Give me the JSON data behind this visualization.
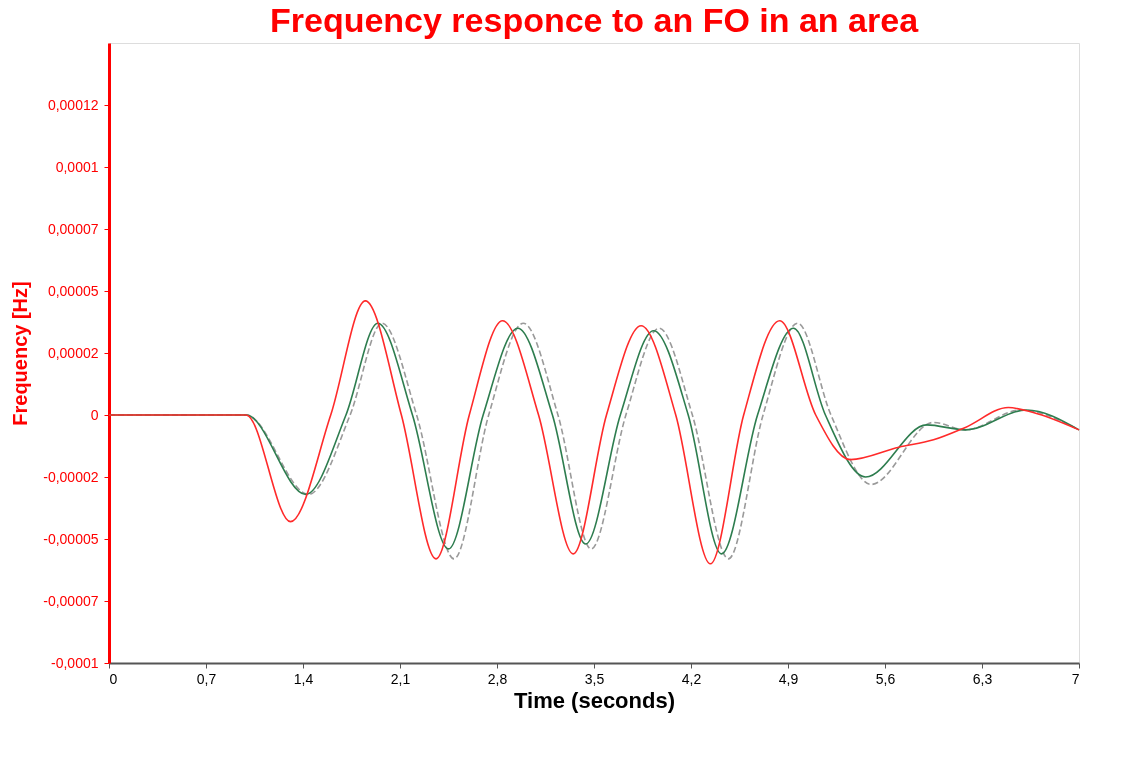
{
  "chart_data": {
    "type": "line",
    "title": "Frequency responce to an FO in an area",
    "xlabel": "Time (seconds)",
    "ylabel": "Frequency [Hz]",
    "xlim": [
      0,
      7
    ],
    "ylim": [
      -0.0001,
      0.00015
    ],
    "xticks": [
      0,
      {
        "value": 0.7,
        "label": "0,7"
      },
      {
        "value": 1.4,
        "label": "1,4"
      },
      {
        "value": 2.1,
        "label": "2,1"
      },
      {
        "value": 2.8,
        "label": "2,8"
      },
      {
        "value": 3.5,
        "label": "3,5"
      },
      {
        "value": 4.2,
        "label": "4,2"
      },
      {
        "value": 4.9,
        "label": "4,9"
      },
      {
        "value": 5.6,
        "label": "5,6"
      },
      {
        "value": 6.3,
        "label": "6,3"
      },
      7
    ],
    "yticks": [
      {
        "value": -0.0001,
        "label": "-0,0001"
      },
      {
        "value": -7.5e-05,
        "label": "-0,00007"
      },
      {
        "value": -5e-05,
        "label": "-0,00005"
      },
      {
        "value": -2.5e-05,
        "label": "-0,00002"
      },
      0,
      {
        "value": 2.5e-05,
        "label": "0,00002"
      },
      {
        "value": 5e-05,
        "label": "0,00005"
      },
      {
        "value": 7.5e-05,
        "label": "0,00007"
      },
      {
        "value": 0.0001,
        "label": "0,0001"
      },
      {
        "value": 0.000125,
        "label": "0,00012"
      }
    ],
    "grid": false,
    "marker": "none",
    "series": [
      {
        "color": "#9a9a9a",
        "line_style": "dashed",
        "x": [
          0,
          0.99,
          1.44,
          1.74,
          1.97,
          2.22,
          2.49,
          2.74,
          2.99,
          3.24,
          3.48,
          3.73,
          3.97,
          4.21,
          4.47,
          4.72,
          4.97,
          5.21,
          5.5,
          5.95,
          6.18,
          6.58,
          7
        ],
        "values": [
          0,
          0,
          -3.2e-05,
          0,
          3.7e-05,
          0,
          -5.8e-05,
          0,
          3.7e-05,
          0,
          -5.4e-05,
          0,
          3.5e-05,
          0,
          -5.8e-05,
          0,
          3.7e-05,
          0,
          -2.8e-05,
          -3e-06,
          -6e-06,
          2e-06,
          -6e-06
        ]
      },
      {
        "color": "#2e7d4f",
        "line_style": "solid",
        "x": [
          0,
          0.99,
          1.42,
          1.71,
          1.94,
          2.19,
          2.45,
          2.7,
          2.95,
          3.2,
          3.44,
          3.69,
          3.93,
          4.18,
          4.42,
          4.68,
          4.94,
          5.17,
          5.46,
          5.9,
          6.18,
          6.62,
          7
        ],
        "values": [
          0,
          0,
          -3.2e-05,
          0,
          3.7e-05,
          0,
          -5.4e-05,
          0,
          3.5e-05,
          0,
          -5.2e-05,
          0,
          3.4e-05,
          0,
          -5.6e-05,
          0,
          3.5e-05,
          0,
          -2.5e-05,
          -4e-06,
          -6e-06,
          2e-06,
          -6e-06
        ]
      },
      {
        "color": "#ff2a2a",
        "line_style": "solid",
        "x": [
          0,
          0.99,
          1.31,
          1.6,
          1.85,
          2.11,
          2.36,
          2.6,
          2.84,
          3.1,
          3.35,
          3.59,
          3.84,
          4.09,
          4.34,
          4.58,
          4.84,
          5.1,
          5.35,
          5.7,
          5.95,
          6.18,
          6.49,
          6.67,
          7
        ],
        "values": [
          0,
          0,
          -4.3e-05,
          0,
          4.6e-05,
          0,
          -5.8e-05,
          0,
          3.8e-05,
          0,
          -5.6e-05,
          0,
          3.6e-05,
          0,
          -6e-05,
          0,
          3.8e-05,
          0,
          -1.8e-05,
          -1.3e-05,
          -1e-05,
          -5e-06,
          3e-06,
          1e-06,
          -6e-06
        ]
      }
    ]
  }
}
